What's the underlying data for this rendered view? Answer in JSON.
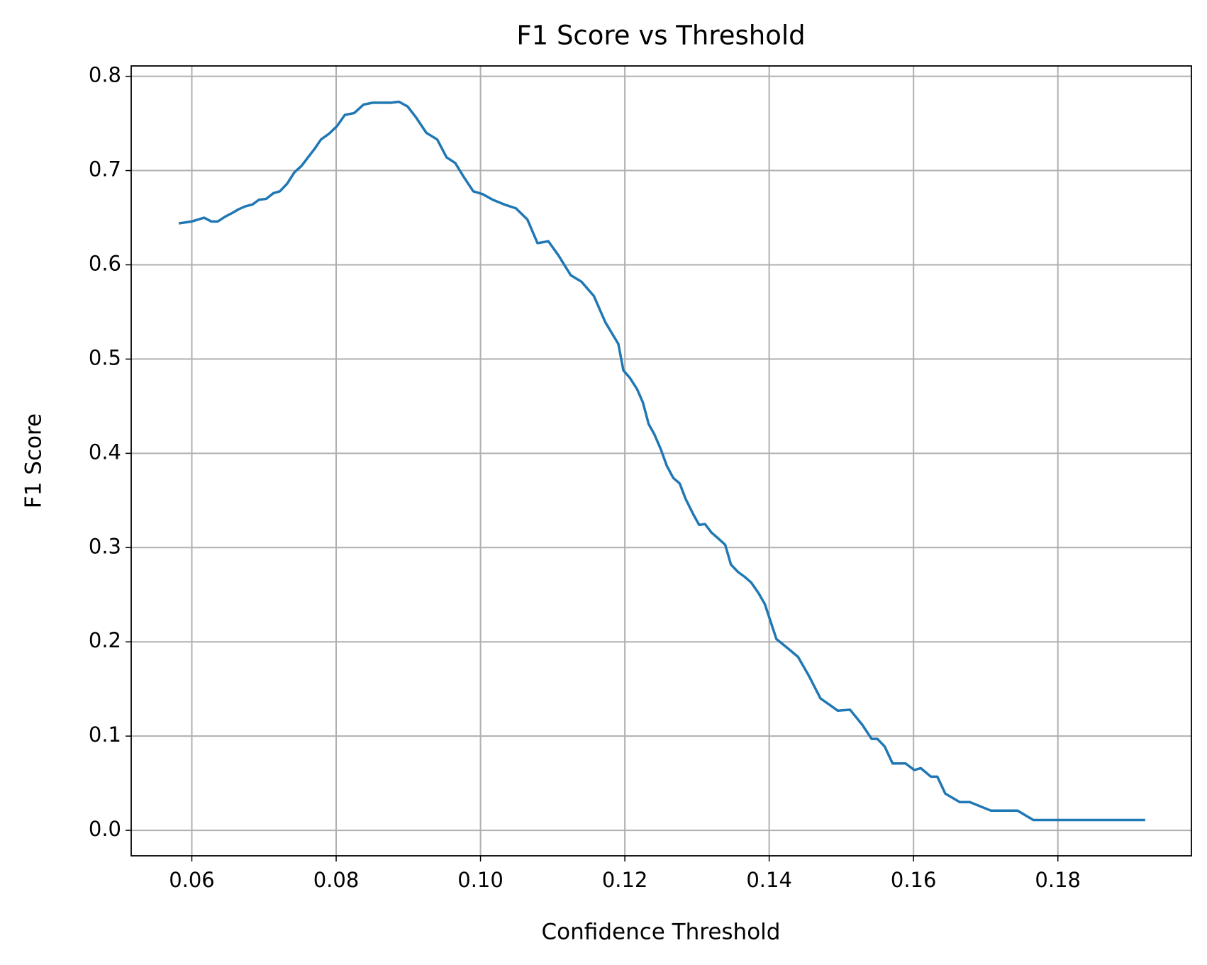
{
  "chart_data": {
    "type": "line",
    "title": "F1 Score vs Threshold",
    "x_label": "Confidence Threshold",
    "y_label": "F1 Score",
    "xlim": [
      0.0516,
      0.1985
    ],
    "ylim": [
      -0.027,
      0.811
    ],
    "xticks": [
      0.06,
      0.08,
      {
        "value": 0.1,
        "label": "0.10"
      },
      0.12,
      0.14,
      0.16,
      0.18
    ],
    "yticks": [
      {
        "value": 0,
        "label": "0.0"
      },
      0.1,
      0.2,
      0.3,
      0.4,
      0.5,
      0.6,
      0.7,
      0.8
    ],
    "grid": true,
    "series": [
      {
        "color": "#1f77b4",
        "x": [
          0.0582,
          0.06,
          0.0617,
          0.0627,
          0.0636,
          0.0646,
          0.0656,
          0.0665,
          0.0674,
          0.0684,
          0.0693,
          0.0703,
          0.0713,
          0.0722,
          0.0732,
          0.0742,
          0.0752,
          0.0761,
          0.0771,
          0.0779,
          0.079,
          0.0801,
          0.0812,
          0.0825,
          0.0838,
          0.0851,
          0.0865,
          0.0876,
          0.0887,
          0.0899,
          0.0911,
          0.0925,
          0.094,
          0.0953,
          0.0965,
          0.0977,
          0.099,
          0.1003,
          0.1017,
          0.1033,
          0.1049,
          0.1065,
          0.1079,
          0.1094,
          0.1108,
          0.1125,
          0.114,
          0.1157,
          0.1173,
          0.1191,
          0.1198,
          0.1207,
          0.1217,
          0.1225,
          0.1233,
          0.1241,
          0.125,
          0.1258,
          0.1267,
          0.1276,
          0.1284,
          0.1295,
          0.1303,
          0.1311,
          0.132,
          0.1329,
          0.1339,
          0.1347,
          0.1357,
          0.1366,
          0.1375,
          0.1385,
          0.1394,
          0.141,
          0.1426,
          0.144,
          0.1455,
          0.1471,
          0.1486,
          0.1495,
          0.1512,
          0.1529,
          0.1542,
          0.155,
          0.156,
          0.1571,
          0.1589,
          0.1601,
          0.161,
          0.1624,
          0.1633,
          0.1644,
          0.1664,
          0.1678,
          0.1707,
          0.172,
          0.1744,
          0.1766,
          0.1921
        ],
        "values": [
          0.644,
          0.646,
          0.65,
          0.646,
          0.646,
          0.651,
          0.655,
          0.659,
          0.662,
          0.664,
          0.669,
          0.67,
          0.676,
          0.678,
          0.686,
          0.698,
          0.705,
          0.714,
          0.724,
          0.733,
          0.739,
          0.747,
          0.759,
          0.761,
          0.77,
          0.772,
          0.772,
          0.772,
          0.773,
          0.768,
          0.756,
          0.74,
          0.733,
          0.714,
          0.708,
          0.693,
          0.678,
          0.675,
          0.669,
          0.664,
          0.66,
          0.648,
          0.623,
          0.625,
          0.61,
          0.589,
          0.582,
          0.567,
          0.539,
          0.516,
          0.488,
          0.48,
          0.468,
          0.454,
          0.431,
          0.42,
          0.404,
          0.387,
          0.374,
          0.368,
          0.352,
          0.335,
          0.324,
          0.325,
          0.316,
          0.31,
          0.303,
          0.282,
          0.274,
          0.269,
          0.263,
          0.252,
          0.24,
          0.203,
          0.193,
          0.184,
          0.164,
          0.14,
          0.132,
          0.127,
          0.128,
          0.112,
          0.097,
          0.097,
          0.089,
          0.071,
          0.071,
          0.064,
          0.066,
          0.057,
          0.057,
          0.039,
          0.03,
          0.03,
          0.021,
          0.021,
          0.021,
          0.011,
          0.011
        ]
      }
    ]
  }
}
